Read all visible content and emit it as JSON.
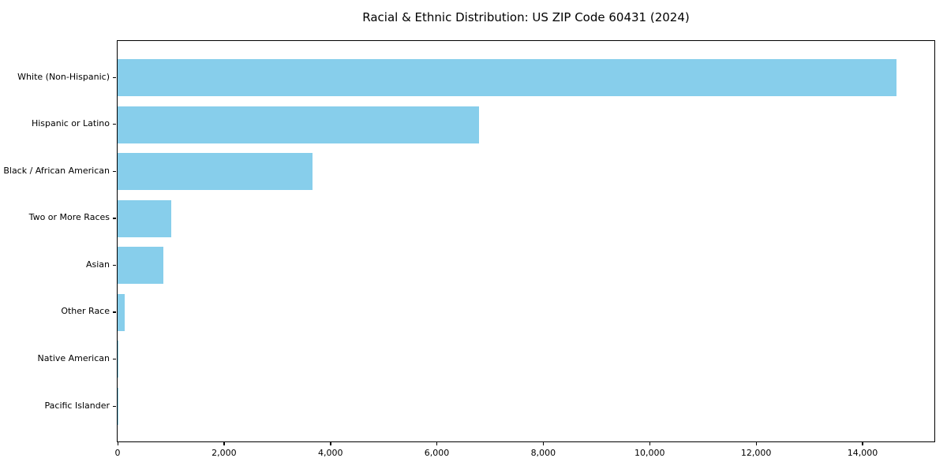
{
  "chart_data": {
    "type": "bar",
    "orientation": "horizontal",
    "title": "Racial & Ethnic Distribution: US ZIP Code 60431 (2024)",
    "categories": [
      "White (Non-Hispanic)",
      "Hispanic or Latino",
      "Black / African American",
      "Two or More Races",
      "Asian",
      "Other Race",
      "Native American",
      "Pacific Islander"
    ],
    "values": [
      14640,
      6790,
      3660,
      1010,
      860,
      140,
      20,
      10
    ],
    "xlabel": "",
    "ylabel": "",
    "xlim": [
      0,
      15350
    ],
    "xticks": [
      0,
      2000,
      4000,
      6000,
      8000,
      10000,
      12000,
      14000
    ],
    "xtick_labels": [
      "0",
      "2,000",
      "4,000",
      "6,000",
      "8,000",
      "10,000",
      "12,000",
      "14,000"
    ],
    "bar_color": "#87CEEB",
    "axis_color": "#000000",
    "background_color": "#ffffff",
    "grid": false,
    "legend": false
  }
}
